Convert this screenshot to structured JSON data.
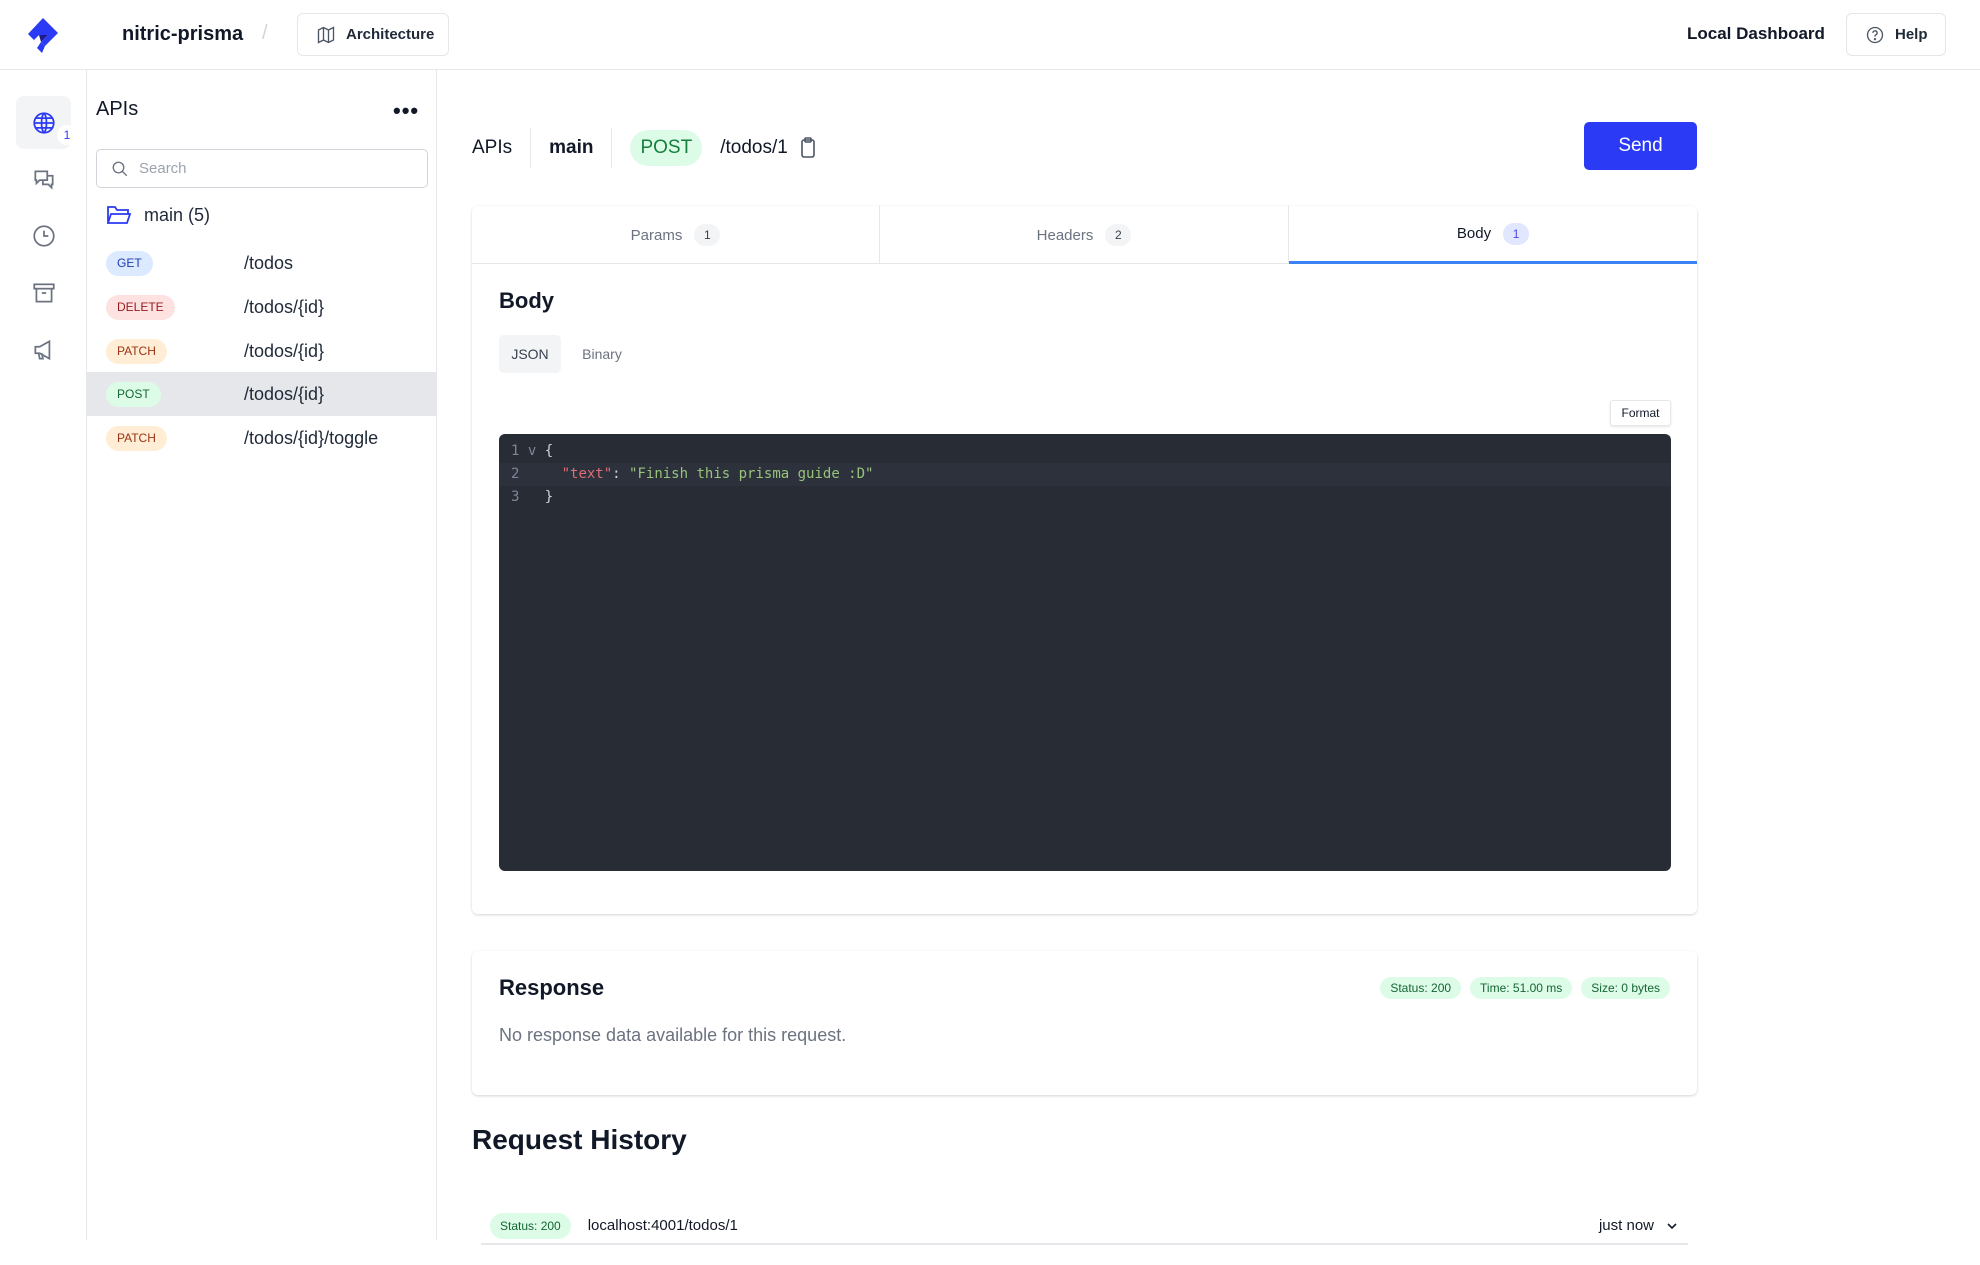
{
  "header": {
    "project": "nitric-prisma",
    "separator": "/",
    "architecture_label": "Architecture",
    "local_dashboard": "Local Dashboard",
    "help_label": "Help"
  },
  "rail": {
    "items": [
      {
        "icon": "globe-icon",
        "badge": "1",
        "active": true
      },
      {
        "icon": "chat-icon"
      },
      {
        "icon": "clock-icon"
      },
      {
        "icon": "archive-icon"
      },
      {
        "icon": "megaphone-icon"
      }
    ]
  },
  "panel": {
    "title": "APIs",
    "search_placeholder": "Search",
    "group": "main (5)",
    "routes": [
      {
        "method": "GET",
        "path": "/todos"
      },
      {
        "method": "DELETE",
        "path": "/todos/{id}"
      },
      {
        "method": "PATCH",
        "path": "/todos/{id}"
      },
      {
        "method": "POST",
        "path": "/todos/{id}",
        "selected": true
      },
      {
        "method": "PATCH",
        "path": "/todos/{id}/toggle"
      }
    ]
  },
  "request": {
    "crumb_api": "APIs",
    "crumb_service": "main",
    "method": "POST",
    "path": "/todos/1",
    "send_label": "Send"
  },
  "tabs": [
    {
      "label": "Params",
      "count": "1"
    },
    {
      "label": "Headers",
      "count": "2"
    },
    {
      "label": "Body",
      "count": "1",
      "active": true
    }
  ],
  "body": {
    "title": "Body",
    "types": [
      "JSON",
      "Binary"
    ],
    "active_type": "JSON",
    "format_label": "Format",
    "code": {
      "ln1": "1",
      "ln2": "2",
      "ln3": "3",
      "open": "{",
      "key": "\"text\"",
      "colon": ": ",
      "value": "\"Finish this prisma guide :D\"",
      "close": "}"
    }
  },
  "response": {
    "title": "Response",
    "status": "Status: 200",
    "time": "Time: 51.00 ms",
    "size": "Size: 0 bytes",
    "empty": "No response data available for this request."
  },
  "history": {
    "title": "Request History",
    "items": [
      {
        "status": "Status: 200",
        "url": "localhost:4001/todos/1",
        "time": "just now"
      }
    ]
  },
  "colors": {
    "accent": "#2b3bf5",
    "tab_underline": "#3b82f6",
    "editor_bg": "#282c34"
  }
}
